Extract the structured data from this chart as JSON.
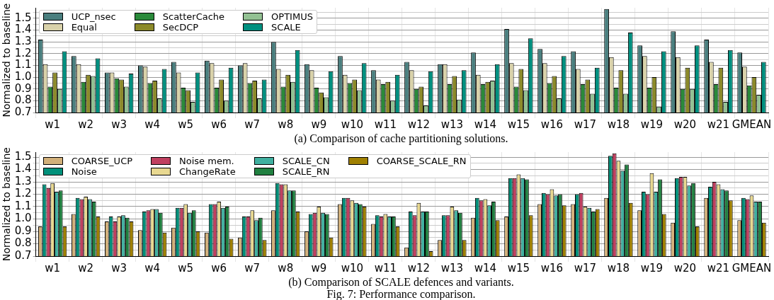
{
  "chart_data": [
    {
      "type": "bar",
      "ylabel": "Normalized to baseline",
      "annotations": [
        "(a) Comparison of cache partitioning solutions."
      ],
      "categories": [
        "w1",
        "w2",
        "w3",
        "w4",
        "w5",
        "w6",
        "w7",
        "w8",
        "w9",
        "w10",
        "w11",
        "w12",
        "w13",
        "w14",
        "w15",
        "w16",
        "w17",
        "w18",
        "w19",
        "w20",
        "w21",
        "GMEAN"
      ],
      "series": [
        {
          "name": "UCP_nsec",
          "color": "#4a7f7f",
          "values": [
            1.32,
            1.18,
            1.04,
            1.1,
            1.13,
            1.14,
            1.1,
            1.3,
            1.11,
            1.18,
            1.06,
            1.13,
            1.11,
            1.21,
            1.41,
            1.24,
            1.22,
            1.58,
            1.27,
            1.39,
            1.32,
            1.21
          ]
        },
        {
          "name": "Equal",
          "color": "#d9d2aa",
          "values": [
            1.11,
            1.11,
            1.04,
            1.09,
            1.04,
            1.12,
            1.12,
            1.07,
            1.06,
            1.02,
            0.98,
            1.06,
            1.11,
            1.02,
            1.12,
            1.12,
            1.07,
            1.17,
            1.18,
            1.17,
            1.13,
            1.09
          ]
        },
        {
          "name": "ScatterCache",
          "color": "#2a8a3a",
          "values": [
            0.92,
            0.96,
            0.99,
            0.95,
            0.91,
            0.91,
            0.95,
            0.92,
            0.91,
            0.95,
            0.94,
            0.9,
            0.94,
            0.94,
            0.92,
            0.95,
            0.94,
            0.91,
            0.91,
            0.9,
            0.94,
            0.93
          ]
        },
        {
          "name": "SecDCP",
          "color": "#8c8a2a",
          "values": [
            1.04,
            1.02,
            0.98,
            0.97,
            0.89,
            0.98,
            0.97,
            1.02,
            0.87,
            0.98,
            0.96,
            0.92,
            1.01,
            0.96,
            1.07,
            1.01,
            0.98,
            1.06,
            1.0,
            1.08,
            1.08,
            1.0
          ]
        },
        {
          "name": "OPTIMUS",
          "color": "#93c193",
          "values": [
            0.9,
            1.01,
            0.92,
            0.82,
            0.79,
            0.8,
            0.82,
            0.96,
            0.83,
            0.89,
            0.8,
            0.76,
            0.81,
            0.97,
            0.89,
            0.82,
            0.86,
            0.86,
            0.75,
            0.9,
            0.79,
            0.85
          ]
        },
        {
          "name": "SCALE",
          "color": "#009080",
          "values": [
            1.22,
            1.16,
            1.03,
            1.07,
            1.04,
            1.08,
            0.98,
            1.23,
            1.05,
            1.12,
            1.02,
            1.05,
            1.06,
            1.11,
            1.33,
            1.18,
            1.08,
            1.38,
            1.22,
            1.27,
            1.23,
            1.13
          ]
        }
      ],
      "ylim": [
        0.7,
        1.59
      ],
      "yticks": [
        0.7,
        {
          "value": 0.75,
          "label": null
        },
        0.8,
        {
          "value": 0.85,
          "label": null
        },
        0.9,
        {
          "value": 0.95,
          "label": null
        },
        {
          "value": 1,
          "label": "1.0"
        },
        {
          "value": 1.05,
          "label": null
        },
        1.1,
        {
          "value": 1.15,
          "label": null
        },
        1.2,
        {
          "value": 1.25,
          "label": null
        },
        1.3,
        {
          "value": 1.35,
          "label": null
        },
        1.4,
        {
          "value": 1.45,
          "label": null
        },
        1.5,
        {
          "value": 1.55,
          "label": null
        }
      ],
      "grid": true,
      "legend": "top left"
    },
    {
      "type": "bar",
      "ylabel": "Normalized to baseline",
      "annotations": [
        "(b) Comparison of SCALE defences and variants.",
        "Fig. 7: Performance comparison."
      ],
      "categories": [
        "w1",
        "w2",
        "w3",
        "w4",
        "w5",
        "w6",
        "w7",
        "w8",
        "w9",
        "w10",
        "w11",
        "w12",
        "w13",
        "w14",
        "w15",
        "w16",
        "w17",
        "w18",
        "w19",
        "w20",
        "w21",
        "GMEAN"
      ],
      "series": [
        {
          "name": "COARSE_UCP",
          "color": "#d2b07a",
          "values": [
            0.94,
            1.04,
            0.98,
            0.91,
            0.93,
            0.89,
            0.85,
            1.07,
            0.9,
            1.12,
            0.96,
            0.77,
            0.83,
            1.01,
            1.02,
            1.12,
            1.12,
            1.17,
            1.07,
            0.97,
            1.17,
            0.99
          ]
        },
        {
          "name": "Noise",
          "color": "#00907a",
          "values": [
            1.28,
            1.17,
            1.02,
            1.06,
            1.09,
            1.12,
            1.02,
            1.29,
            1.04,
            1.17,
            1.03,
            1.06,
            1.03,
            1.17,
            1.33,
            1.21,
            1.2,
            1.51,
            1.22,
            1.33,
            1.26,
            1.17
          ]
        },
        {
          "name": "Noise mem.",
          "color": "#c04060",
          "values": [
            1.25,
            1.16,
            0.98,
            1.07,
            1.09,
            1.12,
            1.02,
            1.28,
            1.05,
            1.17,
            1.02,
            1.03,
            1.03,
            1.15,
            1.33,
            1.2,
            1.21,
            1.53,
            1.2,
            1.34,
            1.3,
            1.16
          ]
        },
        {
          "name": "ChangeRate",
          "color": "#e8d890",
          "values": [
            1.29,
            1.18,
            1.02,
            1.08,
            1.12,
            1.14,
            1.07,
            1.28,
            1.1,
            1.15,
            1.04,
            1.13,
            1.1,
            1.16,
            1.36,
            1.24,
            1.1,
            1.47,
            1.37,
            1.34,
            1.28,
            1.19
          ]
        },
        {
          "name": "SCALE_CN",
          "color": "#40b0a0",
          "values": [
            1.22,
            1.16,
            1.03,
            1.08,
            1.05,
            1.09,
            0.99,
            1.23,
            1.05,
            1.13,
            1.02,
            1.06,
            1.07,
            1.11,
            1.33,
            1.19,
            1.09,
            1.39,
            1.22,
            1.27,
            1.24,
            1.14
          ]
        },
        {
          "name": "SCALE_RN",
          "color": "#208040",
          "values": [
            1.23,
            1.14,
            1.01,
            1.05,
            1.07,
            1.1,
            1.01,
            1.23,
            1.04,
            1.12,
            1.02,
            1.06,
            1.05,
            1.14,
            1.32,
            1.2,
            1.06,
            1.44,
            1.32,
            1.29,
            1.23,
            1.14
          ]
        },
        {
          "name": "COARSE_SCALE_RN",
          "color": "#a08000",
          "values": [
            0.94,
            1.02,
            0.98,
            0.89,
            0.9,
            0.84,
            0.83,
            1.06,
            0.85,
            1.1,
            0.94,
            0.74,
            0.83,
            0.99,
            1.03,
            1.11,
            1.08,
            1.13,
            1.04,
            0.94,
            1.15,
            0.97
          ]
        }
      ],
      "ylim": [
        0.7,
        1.54
      ],
      "yticks": [
        0.7,
        {
          "value": 0.75,
          "label": null
        },
        0.8,
        {
          "value": 0.85,
          "label": null
        },
        0.9,
        {
          "value": 0.95,
          "label": null
        },
        {
          "value": 1,
          "label": "1.0"
        },
        {
          "value": 1.05,
          "label": null
        },
        1.1,
        {
          "value": 1.15,
          "label": null
        },
        1.2,
        {
          "value": 1.25,
          "label": null
        },
        1.3,
        {
          "value": 1.35,
          "label": null
        },
        1.4,
        {
          "value": 1.45,
          "label": null
        },
        1.5
      ],
      "grid": true,
      "legend": "top left"
    }
  ]
}
